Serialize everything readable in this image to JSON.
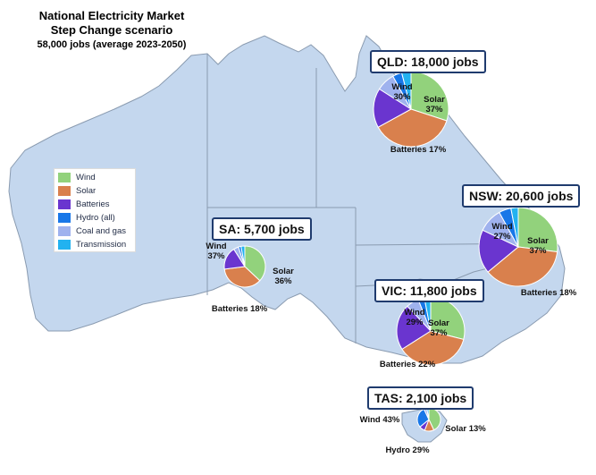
{
  "header": {
    "title_line1": "National Electricity Market",
    "title_line2": "Step Change scenario",
    "subtitle": "58,000 jobs (average 2023-2050)"
  },
  "legend": [
    {
      "label": "Wind",
      "color": "#92d27c"
    },
    {
      "label": "Solar",
      "color": "#d9804d"
    },
    {
      "label": "Batteries",
      "color": "#6a35cf"
    },
    {
      "label": "Hydro (all)",
      "color": "#1877e8"
    },
    {
      "label": "Coal and gas",
      "color": "#9fb2ee"
    },
    {
      "label": "Transmission",
      "color": "#22b2f0"
    }
  ],
  "colors": {
    "land": "#c4d7ee",
    "border": "#8a9bb0",
    "title_border": "#1f3b6e"
  },
  "chart_data": {
    "type": "pie",
    "states": [
      {
        "key": "qld",
        "title": "QLD: 18,000 jobs",
        "slices": [
          {
            "label": "Wind",
            "value": 30
          },
          {
            "label": "Solar",
            "value": 37
          },
          {
            "label": "Batteries",
            "value": 17
          },
          {
            "label": "Coal and gas",
            "value": 8
          },
          {
            "label": "Hydro (all)",
            "value": 4
          },
          {
            "label": "Transmission",
            "value": 4
          }
        ],
        "labels": {
          "Wind": [
            "Wind",
            "30%"
          ],
          "Solar": [
            "Solar",
            "37%"
          ],
          "Batteries": [
            "Batteries 17%"
          ]
        }
      },
      {
        "key": "nsw",
        "title": "NSW: 20,600 jobs",
        "slices": [
          {
            "label": "Wind",
            "value": 27
          },
          {
            "label": "Solar",
            "value": 37
          },
          {
            "label": "Batteries",
            "value": 18
          },
          {
            "label": "Coal and gas",
            "value": 10
          },
          {
            "label": "Hydro (all)",
            "value": 5
          },
          {
            "label": "Transmission",
            "value": 3
          }
        ],
        "labels": {
          "Wind": [
            "Wind",
            "27%"
          ],
          "Solar": [
            "Solar",
            "37%"
          ],
          "Batteries": [
            "Batteries 18%"
          ]
        }
      },
      {
        "key": "vic",
        "title": "VIC: 11,800 jobs",
        "slices": [
          {
            "label": "Wind",
            "value": 29
          },
          {
            "label": "Solar",
            "value": 37
          },
          {
            "label": "Batteries",
            "value": 22
          },
          {
            "label": "Coal and gas",
            "value": 6
          },
          {
            "label": "Hydro (all)",
            "value": 3
          },
          {
            "label": "Transmission",
            "value": 3
          }
        ],
        "labels": {
          "Wind": [
            "Wind",
            "29%"
          ],
          "Solar": [
            "Solar",
            "37%"
          ],
          "Batteries": [
            "Batteries 22%"
          ]
        }
      },
      {
        "key": "sa",
        "title": "SA: 5,700 jobs",
        "slices": [
          {
            "label": "Wind",
            "value": 37
          },
          {
            "label": "Solar",
            "value": 36
          },
          {
            "label": "Batteries",
            "value": 18
          },
          {
            "label": "Coal and gas",
            "value": 4
          },
          {
            "label": "Hydro (all)",
            "value": 2
          },
          {
            "label": "Transmission",
            "value": 3
          }
        ],
        "labels": {
          "Wind": [
            "Wind",
            "37%"
          ],
          "Solar": [
            "Solar",
            "36%"
          ],
          "Batteries": [
            "Batteries 18%"
          ]
        }
      },
      {
        "key": "tas",
        "title": "TAS: 2,100 jobs",
        "slices": [
          {
            "label": "Wind",
            "value": 43
          },
          {
            "label": "Solar",
            "value": 13
          },
          {
            "label": "Batteries",
            "value": 8
          },
          {
            "label": "Hydro (all)",
            "value": 29
          },
          {
            "label": "Coal and gas",
            "value": 4
          },
          {
            "label": "Transmission",
            "value": 3
          }
        ],
        "labels": {
          "Wind": [
            "Wind 43%"
          ],
          "Solar": [
            "Solar 13%"
          ],
          "Hydro (all)": [
            "Hydro 29%"
          ]
        }
      }
    ]
  }
}
